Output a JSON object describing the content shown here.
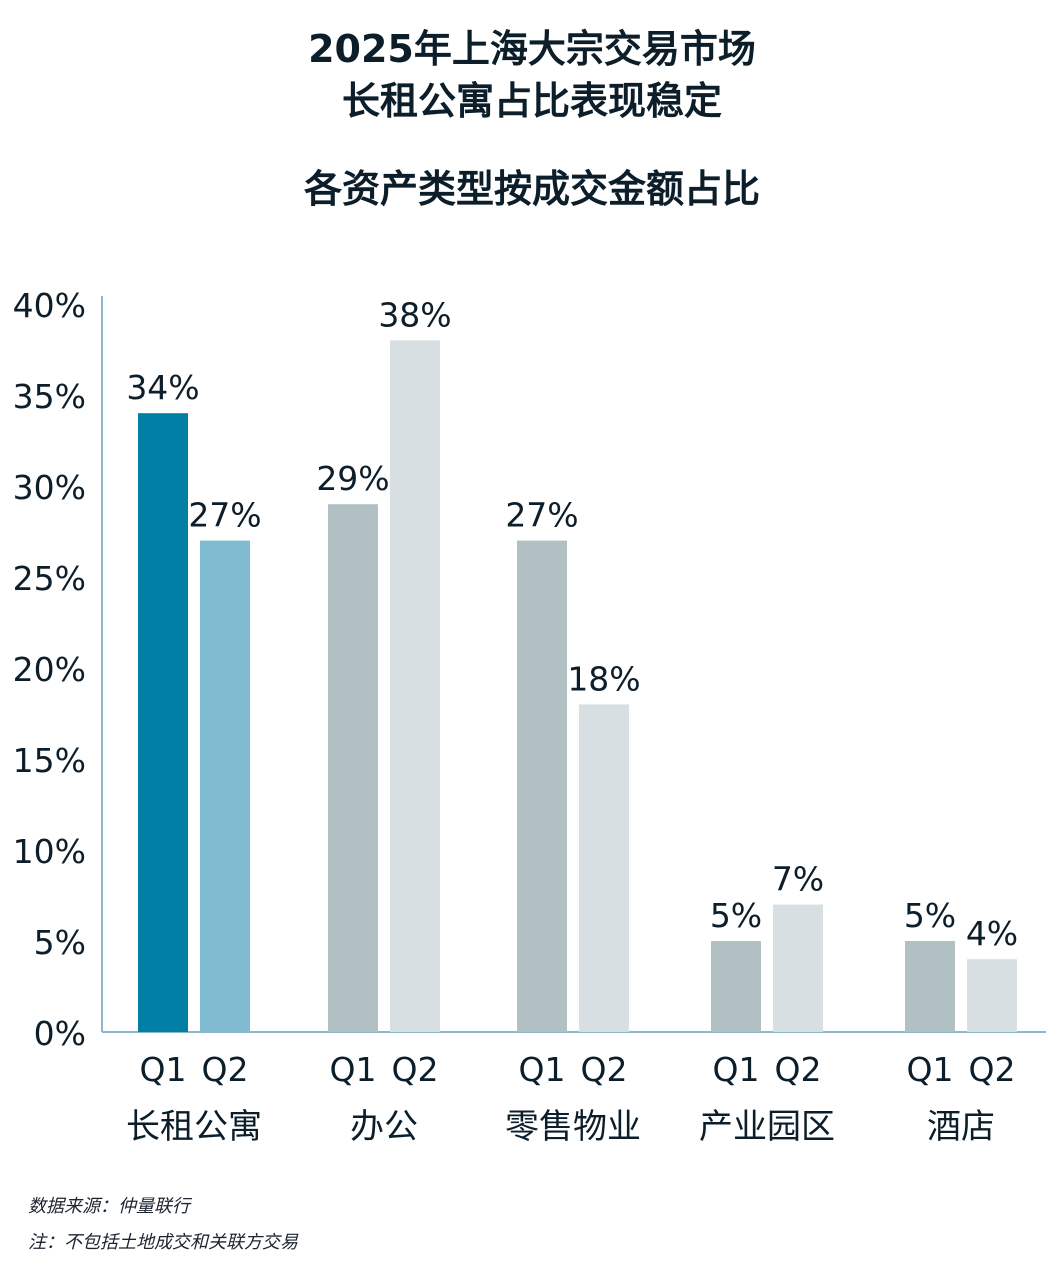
{
  "title_lines": [
    "2025年上海大宗交易市场",
    "长租公寓占比表现稳定"
  ],
  "subtitle": "各资产类型按成交金额占比",
  "notes": {
    "source": "数据来源：仲量联行",
    "remark": "注：不包括土地成交和关联方交易"
  },
  "colors": {
    "axis": "#8fb6cc",
    "text": "#0d1e2b",
    "apt_q1": "#007ea3",
    "apt_q2": "#7fbcd2",
    "other_q1": "#b1c0c3",
    "other_q2": "#d8dfe2"
  },
  "chart_data": {
    "type": "bar",
    "title": "各资产类型按成交金额占比",
    "xlabel": "",
    "ylabel": "",
    "ylim": [
      0,
      40
    ],
    "yticks": [
      "0%",
      "5%",
      "10%",
      "15%",
      "20%",
      "25%",
      "30%",
      "35%",
      "40%"
    ],
    "grid": false,
    "legend": "none",
    "categories": [
      "长租公寓",
      "办公",
      "零售物业",
      "产业园区",
      "酒店"
    ],
    "series": [
      {
        "name": "Q1",
        "values": [
          34,
          29,
          27,
          5,
          5
        ],
        "labels": [
          "34%",
          "29%",
          "27%",
          "5%",
          "5%"
        ]
      },
      {
        "name": "Q2",
        "values": [
          27,
          38,
          18,
          7,
          4
        ],
        "labels": [
          "27%",
          "38%",
          "18%",
          "7%",
          "4%"
        ]
      }
    ]
  }
}
